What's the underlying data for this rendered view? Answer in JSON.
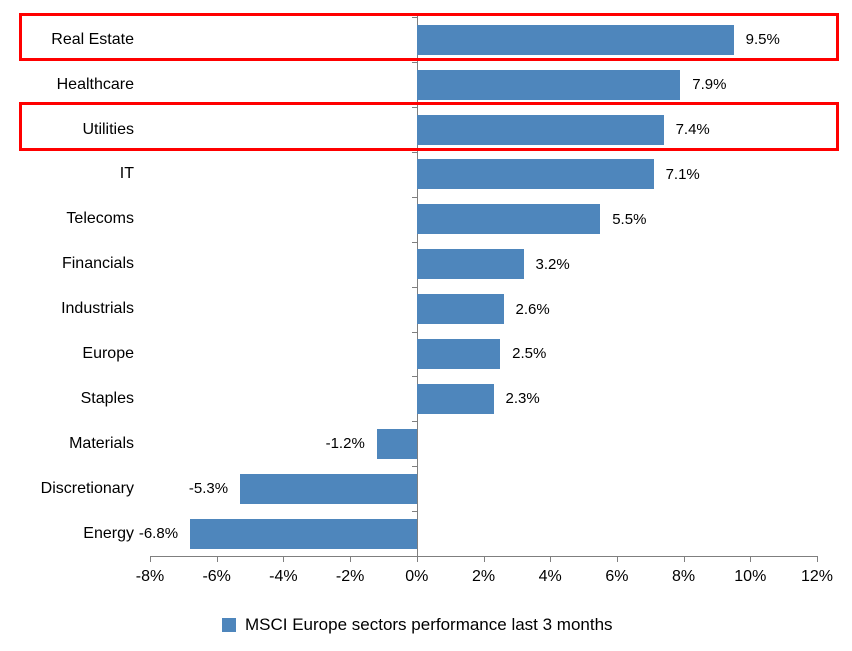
{
  "chart_data": {
    "type": "bar",
    "orientation": "horizontal",
    "title": "",
    "categories": [
      "Real Estate",
      "Healthcare",
      "Utilities",
      "IT",
      "Telecoms",
      "Financials",
      "Industrials",
      "Europe",
      "Staples",
      "Materials",
      "Discretionary",
      "Energy"
    ],
    "values": [
      9.5,
      7.9,
      7.4,
      7.1,
      5.5,
      3.2,
      2.6,
      2.5,
      2.3,
      -1.2,
      -5.3,
      -6.8
    ],
    "data_labels": [
      "9.5%",
      "7.9%",
      "7.4%",
      "7.1%",
      "5.5%",
      "3.2%",
      "2.6%",
      "2.5%",
      "2.3%",
      "-1.2%",
      "-5.3%",
      "-6.8%"
    ],
    "xlim": [
      -8,
      12
    ],
    "x_tick_values": [
      -8,
      -6,
      -4,
      -2,
      0,
      2,
      4,
      6,
      8,
      10,
      12
    ],
    "x_tick_labels": [
      "-8%",
      "-6%",
      "-4%",
      "-2%",
      "0%",
      "2%",
      "4%",
      "6%",
      "8%",
      "10%",
      "12%"
    ],
    "grid": false,
    "bar_color": "#4e86bc",
    "axis_color": "#7f7f7f",
    "text_color": "#000000",
    "legend": {
      "label": "MSCI Europe sectors performance last 3 months",
      "position": "bottom",
      "marker_color": "#4e86bc"
    },
    "annotations": {
      "highlight_boxes": {
        "color": "#ff0000",
        "categories": [
          "Real Estate",
          "Utilities"
        ]
      }
    }
  }
}
